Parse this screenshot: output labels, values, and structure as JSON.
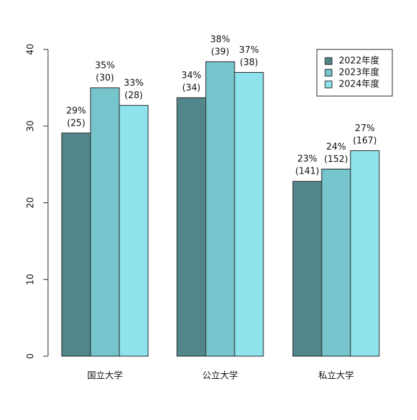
{
  "chart_data": {
    "type": "bar",
    "categories": [
      "国立大学",
      "公立大学",
      "私立大学"
    ],
    "series": [
      {
        "name": "2022年度",
        "color": "#52868a",
        "values": [
          29.1,
          33.7,
          22.8
        ],
        "value_labels": [
          "29%",
          "34%",
          "23%"
        ],
        "count_labels": [
          "(25)",
          "(34)",
          "(141)"
        ]
      },
      {
        "name": "2023年度",
        "color": "#76c4cc",
        "values": [
          35.0,
          38.4,
          24.4
        ],
        "value_labels": [
          "35%",
          "38%",
          "24%"
        ],
        "count_labels": [
          "(30)",
          "(39)",
          "(152)"
        ]
      },
      {
        "name": "2024年度",
        "color": "#8fe3ec",
        "values": [
          32.7,
          37.0,
          26.8
        ],
        "value_labels": [
          "33%",
          "37%",
          "27%"
        ],
        "count_labels": [
          "(28)",
          "(38)",
          "(167)"
        ]
      }
    ],
    "ylim": [
      0,
      40
    ],
    "yticks": [
      0,
      10,
      20,
      30,
      40
    ],
    "legend": "top-right"
  }
}
